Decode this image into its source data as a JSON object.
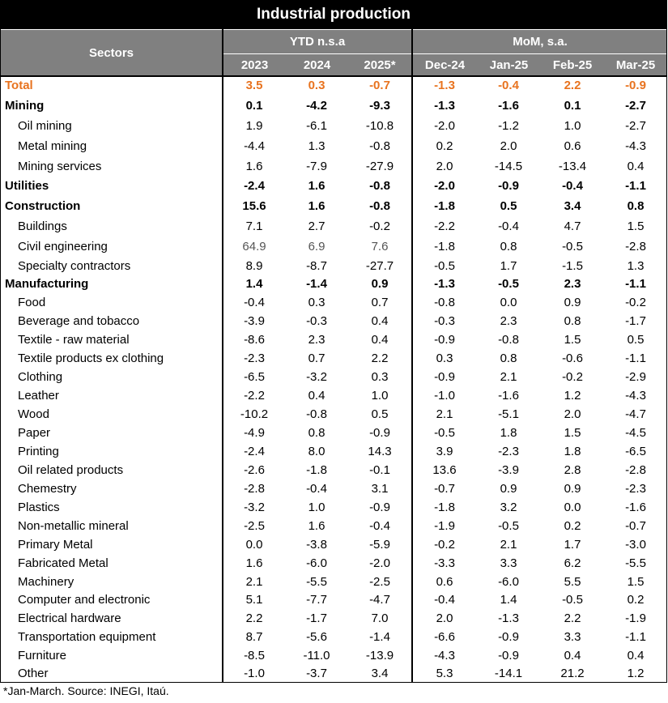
{
  "title": "Industrial production",
  "header": {
    "sectors": "Sectors",
    "ytd_group": "YTD n.s.a",
    "mom_group": "MoM, s.a.",
    "ytd_years": [
      "2023",
      "2024",
      "2025*"
    ],
    "mom_months": [
      "Dec-24",
      "Jan-25",
      "Feb-25",
      "Mar-25"
    ]
  },
  "rows": [
    {
      "label": "Total",
      "style": "total",
      "values": [
        "3.5",
        "0.3",
        "-0.7",
        "-1.3",
        "-0.4",
        "2.2",
        "-0.9"
      ]
    },
    {
      "label": "Mining",
      "style": "bold",
      "values": [
        "0.1",
        "-4.2",
        "-9.3",
        "-1.3",
        "-1.6",
        "0.1",
        "-2.7"
      ]
    },
    {
      "label": "Oil mining",
      "style": "sub",
      "values": [
        "1.9",
        "-6.1",
        "-10.8",
        "-2.0",
        "-1.2",
        "1.0",
        "-2.7"
      ]
    },
    {
      "label": "Metal mining",
      "style": "sub",
      "values": [
        "-4.4",
        "1.3",
        "-0.8",
        "0.2",
        "2.0",
        "0.6",
        "-4.3"
      ]
    },
    {
      "label": "Mining services",
      "style": "sub",
      "values": [
        "1.6",
        "-7.9",
        "-27.9",
        "2.0",
        "-14.5",
        "-13.4",
        "0.4"
      ]
    },
    {
      "label": "Utilities",
      "style": "bold",
      "values": [
        "-2.4",
        "1.6",
        "-0.8",
        "-2.0",
        "-0.9",
        "-0.4",
        "-1.1"
      ]
    },
    {
      "label": "Construction",
      "style": "bold",
      "values": [
        "15.6",
        "1.6",
        "-0.8",
        "-1.8",
        "0.5",
        "3.4",
        "0.8"
      ]
    },
    {
      "label": "Buildings",
      "style": "sub",
      "values": [
        "7.1",
        "2.7",
        "-0.2",
        "-2.2",
        "-0.4",
        "4.7",
        "1.5"
      ]
    },
    {
      "label": "Civil engineering",
      "style": "sub-grey",
      "values": [
        "64.9",
        "6.9",
        "7.6",
        "-1.8",
        "0.8",
        "-0.5",
        "-2.8"
      ]
    },
    {
      "label": "Specialty contractors",
      "style": "sub",
      "values": [
        "8.9",
        "-8.7",
        "-27.7",
        "-0.5",
        "1.7",
        "-1.5",
        "1.3"
      ]
    },
    {
      "label": "Manufacturing",
      "style": "bold",
      "values": [
        "1.4",
        "-1.4",
        "0.9",
        "-1.3",
        "-0.5",
        "2.3",
        "-1.1"
      ]
    },
    {
      "label": "Food",
      "style": "sub",
      "values": [
        "-0.4",
        "0.3",
        "0.7",
        "-0.8",
        "0.0",
        "0.9",
        "-0.2"
      ]
    },
    {
      "label": "Beverage and tobacco",
      "style": "sub",
      "values": [
        "-3.9",
        "-0.3",
        "0.4",
        "-0.3",
        "2.3",
        "0.8",
        "-1.7"
      ]
    },
    {
      "label": "Textile - raw material",
      "style": "sub",
      "values": [
        "-8.6",
        "2.3",
        "0.4",
        "-0.9",
        "-0.8",
        "1.5",
        "0.5"
      ]
    },
    {
      "label": "Textile products ex clothing",
      "style": "sub",
      "values": [
        "-2.3",
        "0.7",
        "2.2",
        "0.3",
        "0.8",
        "-0.6",
        "-1.1"
      ]
    },
    {
      "label": "Clothing",
      "style": "sub",
      "values": [
        "-6.5",
        "-3.2",
        "0.3",
        "-0.9",
        "2.1",
        "-0.2",
        "-2.9"
      ]
    },
    {
      "label": "Leather",
      "style": "sub",
      "values": [
        "-2.2",
        "0.4",
        "1.0",
        "-1.0",
        "-1.6",
        "1.2",
        "-4.3"
      ]
    },
    {
      "label": "Wood",
      "style": "sub",
      "values": [
        "-10.2",
        "-0.8",
        "0.5",
        "2.1",
        "-5.1",
        "2.0",
        "-4.7"
      ]
    },
    {
      "label": "Paper",
      "style": "sub",
      "values": [
        "-4.9",
        "0.8",
        "-0.9",
        "-0.5",
        "1.8",
        "1.5",
        "-4.5"
      ]
    },
    {
      "label": "Printing",
      "style": "sub",
      "values": [
        "-2.4",
        "8.0",
        "14.3",
        "3.9",
        "-2.3",
        "1.8",
        "-6.5"
      ]
    },
    {
      "label": "Oil related products",
      "style": "sub",
      "values": [
        "-2.6",
        "-1.8",
        "-0.1",
        "13.6",
        "-3.9",
        "2.8",
        "-2.8"
      ]
    },
    {
      "label": "Chemestry",
      "style": "sub",
      "values": [
        "-2.8",
        "-0.4",
        "3.1",
        "-0.7",
        "0.9",
        "0.9",
        "-2.3"
      ]
    },
    {
      "label": "Plastics",
      "style": "sub",
      "values": [
        "-3.2",
        "1.0",
        "-0.9",
        "-1.8",
        "3.2",
        "0.0",
        "-1.6"
      ]
    },
    {
      "label": "Non-metallic mineral",
      "style": "sub",
      "values": [
        "-2.5",
        "1.6",
        "-0.4",
        "-1.9",
        "-0.5",
        "0.2",
        "-0.7"
      ]
    },
    {
      "label": "Primary Metal",
      "style": "sub",
      "values": [
        "0.0",
        "-3.8",
        "-5.9",
        "-0.2",
        "2.1",
        "1.7",
        "-3.0"
      ]
    },
    {
      "label": "Fabricated Metal",
      "style": "sub",
      "values": [
        "1.6",
        "-6.0",
        "-2.0",
        "-3.3",
        "3.3",
        "6.2",
        "-5.5"
      ]
    },
    {
      "label": "Machinery",
      "style": "sub",
      "values": [
        "2.1",
        "-5.5",
        "-2.5",
        "0.6",
        "-6.0",
        "5.5",
        "1.5"
      ]
    },
    {
      "label": "Computer and electronic",
      "style": "sub",
      "values": [
        "5.1",
        "-7.7",
        "-4.7",
        "-0.4",
        "1.4",
        "-0.5",
        "0.2"
      ]
    },
    {
      "label": "Electrical hardware",
      "style": "sub",
      "values": [
        "2.2",
        "-1.7",
        "7.0",
        "2.0",
        "-1.3",
        "2.2",
        "-1.9"
      ]
    },
    {
      "label": "Transportation equipment",
      "style": "sub",
      "values": [
        "8.7",
        "-5.6",
        "-1.4",
        "-6.6",
        "-0.9",
        "3.3",
        "-1.1"
      ]
    },
    {
      "label": "Furniture",
      "style": "sub",
      "values": [
        "-8.5",
        "-11.0",
        "-13.9",
        "-4.3",
        "-0.9",
        "0.4",
        "0.4"
      ]
    },
    {
      "label": "Other",
      "style": "sub",
      "values": [
        "-1.0",
        "-3.7",
        "3.4",
        "5.3",
        "-14.1",
        "21.2",
        "1.2"
      ]
    }
  ],
  "footnote": "*Jan-March. Source: INEGI, Itaú."
}
